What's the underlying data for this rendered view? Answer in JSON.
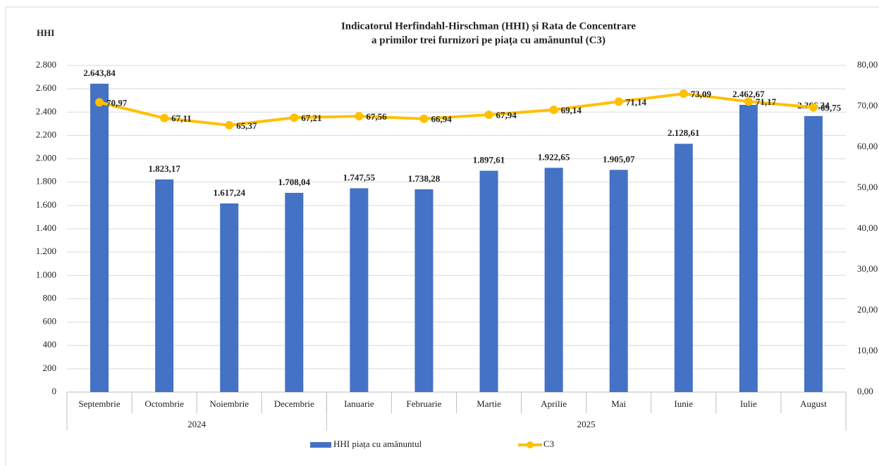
{
  "chart_data": {
    "type": "bar",
    "title": [
      "Indicatorul Herfindahl-Hirschman (HHI) și Rata de Concentrare",
      "a primilor trei furnizori pe piața cu amănuntul (C3)"
    ],
    "y_label": "HHI",
    "category_groups": [
      {
        "label": "2024",
        "categories": [
          "Septembrie",
          "Octombrie",
          "Noiembrie",
          "Decembrie"
        ]
      },
      {
        "label": "2025",
        "categories": [
          "Ianuarie",
          "Februarie",
          "Martie",
          "Aprilie",
          "Mai",
          "Iunie",
          "Iulie",
          "August"
        ]
      }
    ],
    "series": [
      {
        "name": "HHI piața cu amănuntul",
        "type": "bar",
        "color": "#4472c4",
        "values": [
          2643.84,
          1823.17,
          1617.24,
          1708.04,
          1747.55,
          1738.28,
          1897.61,
          1922.65,
          1905.07,
          2128.61,
          2462.67,
          2366.34
        ],
        "value_labels": [
          "2.643,84",
          "1.823,17",
          "1.617,24",
          "1.708,04",
          "1.747,55",
          "1.738,28",
          "1.897,61",
          "1.922,65",
          "1.905,07",
          "2.128,61",
          "2.462,67",
          "2.366,34"
        ]
      },
      {
        "name": "C3",
        "type": "line",
        "axis": "y2",
        "color": "#ffc000",
        "values": [
          70.97,
          67.11,
          65.37,
          67.21,
          67.56,
          66.94,
          67.94,
          69.14,
          71.14,
          73.09,
          71.17,
          69.75
        ],
        "value_labels": [
          "70,97",
          "67,11",
          "65,37",
          "67,21",
          "67,56",
          "66,94",
          "67,94",
          "69,14",
          "71,14",
          "73,09",
          "71,17",
          "69,75"
        ]
      }
    ],
    "ylim": [
      0,
      2800
    ],
    "yticks": [
      0,
      200,
      400,
      600,
      800,
      {
        "value": 1000,
        "label": "1.000"
      },
      {
        "value": 1200,
        "label": "1.200"
      },
      {
        "value": 1400,
        "label": "1.400"
      },
      {
        "value": 1600,
        "label": "1.600"
      },
      {
        "value": 1800,
        "label": "1.800"
      },
      {
        "value": 2000,
        "label": "2.000"
      },
      {
        "value": 2200,
        "label": "2.200"
      },
      {
        "value": 2400,
        "label": "2.400"
      },
      {
        "value": 2600,
        "label": "2.600"
      },
      {
        "value": 2800,
        "label": "2.800"
      }
    ],
    "y2lim": [
      0,
      80
    ],
    "y2ticks": [
      {
        "value": 0,
        "label": "0,00"
      },
      {
        "value": 10,
        "label": "10,00"
      },
      {
        "value": 20,
        "label": "20,00"
      },
      {
        "value": 30,
        "label": "30,00"
      },
      {
        "value": 40,
        "label": "40,00"
      },
      {
        "value": 50,
        "label": "50,00"
      },
      {
        "value": 60,
        "label": "60,00"
      },
      {
        "value": 70,
        "label": "70,00"
      },
      {
        "value": 80,
        "label": "80,00"
      }
    ],
    "grid": true,
    "legend": "bottom"
  }
}
